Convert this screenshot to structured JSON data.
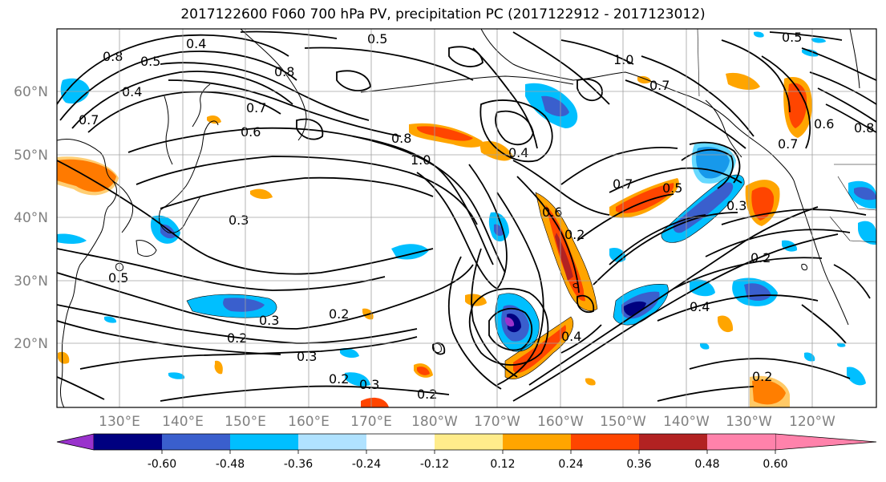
{
  "title": "2017122600 F060 700 hPa PV, precipitation PC (2017122912 - 2017123012)",
  "lat_labels": [
    "60°N",
    "50°N",
    "40°N",
    "30°N",
    "20°N"
  ],
  "lon_labels": [
    "130°E",
    "140°E",
    "150°E",
    "160°E",
    "170°E",
    "180°W",
    "170°W",
    "160°W",
    "150°W",
    "140°W",
    "130°W",
    "120°W"
  ],
  "colorbar": {
    "labels": [
      "-0.60",
      "-0.48",
      "-0.36",
      "-0.24",
      "-0.12",
      "0.12",
      "0.24",
      "0.36",
      "0.48",
      "0.60"
    ],
    "colors": [
      "#9932cc",
      "#000080",
      "#3a5fcd",
      "#00bfff",
      "#b0e2ff",
      "#ffffff",
      "#ffec8b",
      "#ffa500",
      "#ff4500",
      "#b22222",
      "#ff82ab"
    ]
  },
  "contour_labels": [
    "0.5",
    "0.4",
    "0.8",
    "0.5",
    "0.4",
    "0.7",
    "0.7",
    "0.6",
    "0.8",
    "1.0",
    "0.8",
    "0.4",
    "0.7",
    "0.3",
    "0.5",
    "0.3",
    "0.2",
    "0.2",
    "0.3",
    "0.2",
    "0.3",
    "0.2",
    "0.3",
    "0.2",
    "0.4",
    "0.6",
    "0.4",
    "0.2",
    "1.0",
    "0.7",
    "0.5",
    "0.6",
    "0.8",
    "0.7",
    "0.5",
    "0.2"
  ]
}
